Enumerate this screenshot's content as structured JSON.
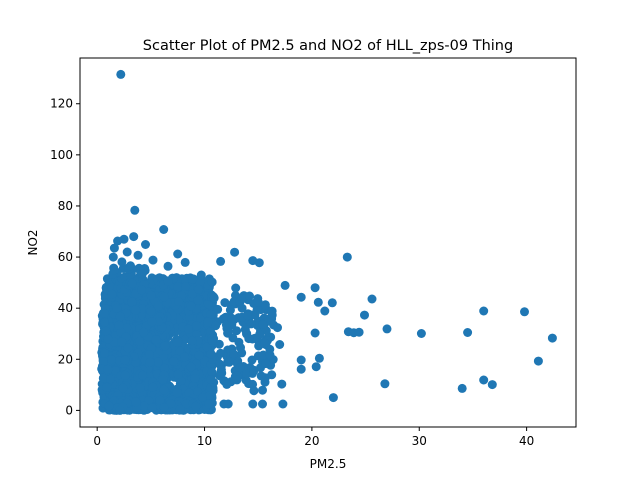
{
  "chart_data": {
    "type": "scatter",
    "title": "Scatter Plot of PM2.5 and NO2 of HLL_zps-09 Thing",
    "xlabel": "PM2.5",
    "ylabel": "NO2",
    "xlim": [
      -1.6,
      44.6
    ],
    "ylim": [
      -6.5,
      137.9
    ],
    "xticks": [
      0,
      10,
      20,
      30,
      40
    ],
    "yticks": [
      0,
      20,
      40,
      60,
      80,
      100,
      120
    ],
    "grid": false,
    "color": "#1f77b4",
    "points": [
      [
        2.2,
        131.5
      ],
      [
        3.5,
        78.3
      ],
      [
        6.2,
        70.8
      ],
      [
        3.4,
        68.0
      ],
      [
        2.5,
        67.0
      ],
      [
        1.9,
        66.3
      ],
      [
        4.5,
        64.9
      ],
      [
        1.6,
        63.5
      ],
      [
        2.8,
        62.0
      ],
      [
        3.8,
        60.7
      ],
      [
        1.5,
        60.0
      ],
      [
        7.5,
        61.2
      ],
      [
        12.8,
        61.9
      ],
      [
        23.3,
        60.0
      ],
      [
        14.5,
        58.6
      ],
      [
        11.5,
        58.3
      ],
      [
        15.1,
        57.8
      ],
      [
        8.2,
        57.9
      ],
      [
        5.2,
        58.8
      ],
      [
        2.3,
        58.1
      ],
      [
        3.1,
        56.6
      ],
      [
        6.6,
        56.4
      ],
      [
        17.5,
        48.9
      ],
      [
        20.3,
        48.0
      ],
      [
        19.0,
        44.3
      ],
      [
        25.6,
        43.6
      ],
      [
        21.9,
        42.1
      ],
      [
        20.6,
        42.3
      ],
      [
        21.2,
        38.9
      ],
      [
        24.9,
        37.3
      ],
      [
        36.0,
        38.9
      ],
      [
        39.8,
        38.6
      ],
      [
        42.4,
        28.3
      ],
      [
        23.4,
        30.8
      ],
      [
        23.9,
        30.4
      ],
      [
        24.4,
        30.6
      ],
      [
        27.0,
        31.9
      ],
      [
        30.2,
        30.1
      ],
      [
        34.5,
        30.5
      ],
      [
        20.3,
        30.3
      ],
      [
        41.1,
        19.3
      ],
      [
        19.0,
        19.7
      ],
      [
        20.7,
        20.4
      ],
      [
        19.0,
        16.1
      ],
      [
        20.4,
        17.1
      ],
      [
        22.0,
        5.0
      ],
      [
        26.8,
        10.4
      ],
      [
        34.0,
        8.6
      ],
      [
        36.0,
        11.9
      ],
      [
        36.8,
        10.1
      ],
      [
        17.2,
        10.3
      ],
      [
        17.3,
        2.5
      ],
      [
        15.4,
        2.5
      ],
      [
        14.5,
        2.5
      ],
      [
        14.6,
        7.7
      ],
      [
        15.4,
        7.9
      ],
      [
        14.1,
        10.5
      ],
      [
        11.8,
        2.5
      ],
      [
        12.2,
        2.5
      ],
      [
        10.4,
        2.5
      ],
      [
        9.8,
        5.1
      ],
      [
        9.2,
        1.6
      ],
      [
        0.7,
        2.7
      ],
      [
        0.9,
        9.0
      ],
      [
        1.1,
        1.7
      ],
      [
        16.3,
        37.3
      ],
      [
        16.8,
        32.4
      ],
      [
        15.6,
        26.3
      ],
      [
        16.1,
        21.7
      ],
      [
        15.7,
        18.3
      ],
      [
        14.6,
        15.7
      ],
      [
        13.3,
        16.7
      ],
      [
        17.0,
        25.8
      ],
      [
        15.0,
        42.4
      ],
      [
        14.0,
        37.1
      ],
      [
        13.2,
        26.7
      ],
      [
        12.7,
        22.1
      ],
      [
        12.3,
        18.8
      ],
      [
        11.6,
        14.6
      ],
      [
        10.6,
        12.1
      ],
      [
        13.8,
        31.6
      ],
      [
        12.9,
        47.9
      ],
      [
        13.5,
        40.0
      ],
      [
        11.9,
        42.2
      ],
      [
        10.7,
        50.2
      ],
      [
        9.7,
        53.0
      ],
      [
        8.9,
        51.3
      ],
      [
        10.3,
        34.6
      ],
      [
        9.5,
        21.6
      ],
      [
        9.1,
        12.5
      ]
    ],
    "clusters": [
      {
        "x": [
          0.5,
          10.8
        ],
        "y": [
          0,
          52
        ],
        "n": 1500
      },
      {
        "x": [
          1.0,
          6.5
        ],
        "y": [
          0,
          45
        ],
        "n": 700
      },
      {
        "x": [
          0.4,
          3.0
        ],
        "y": [
          8,
          40
        ],
        "n": 180
      },
      {
        "x": [
          1.3,
          4.5
        ],
        "y": [
          45,
          56
        ],
        "n": 60
      },
      {
        "x": [
          10.5,
          16.5
        ],
        "y": [
          10,
          45
        ],
        "n": 140
      },
      {
        "x": [
          1.5,
          9.5
        ],
        "y": [
          0,
          4
        ],
        "n": 120
      }
    ]
  }
}
